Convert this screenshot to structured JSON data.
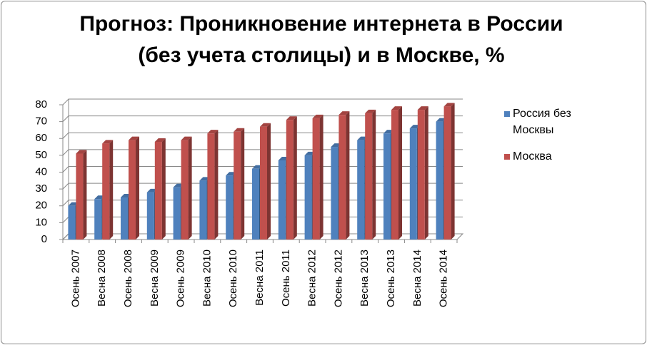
{
  "chart_data": {
    "type": "bar",
    "title": "Прогноз: Проникновение интернета в России (без учета столицы) и в Москве, %",
    "categories": [
      "Осень 2007",
      "Весна 2008",
      "Осень 2008",
      "Весна 2009",
      "Осень 2009",
      "Весна 2010",
      "Осень 2010",
      "Весна 2011",
      "Осень 2011",
      "Весна 2012",
      "Осень 2012",
      "Весна 2013",
      "Осень 2013",
      "Весна 2014",
      "Осень 2014"
    ],
    "series": [
      {
        "name": "Россия без Москвы",
        "color": "#4f81bd",
        "values": [
          20,
          24,
          25,
          28,
          31,
          35,
          38,
          42,
          47,
          50,
          55,
          59,
          63,
          66,
          70
        ]
      },
      {
        "name": "Москва",
        "color": "#c0504d",
        "values": [
          51,
          57,
          59,
          58,
          59,
          63,
          64,
          67,
          71,
          72,
          74,
          75,
          77,
          77,
          79
        ]
      }
    ],
    "ylim": [
      0,
      80
    ],
    "yticks": [
      0,
      10,
      20,
      30,
      40,
      50,
      60,
      70,
      80
    ],
    "grid": true,
    "legend": "right"
  }
}
